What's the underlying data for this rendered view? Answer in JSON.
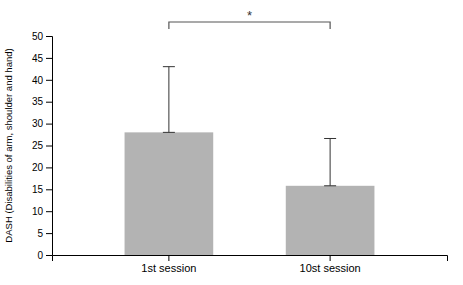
{
  "chart_data": {
    "type": "bar",
    "categories": [
      "1st session",
      "10st session"
    ],
    "values": [
      28.0,
      15.8
    ],
    "errors_upper": [
      15.0,
      10.8
    ],
    "errors_lower": [
      0.0,
      0.0
    ],
    "color": "#b3b3b3",
    "ylim": [
      0,
      50
    ],
    "yticks": [
      0,
      5,
      10,
      15,
      20,
      25,
      30,
      35,
      40,
      45,
      50
    ],
    "ylabel": "DASH (Disabilities of arm, shoulder and hand)",
    "annotations": [
      "*"
    ],
    "grid": false
  }
}
